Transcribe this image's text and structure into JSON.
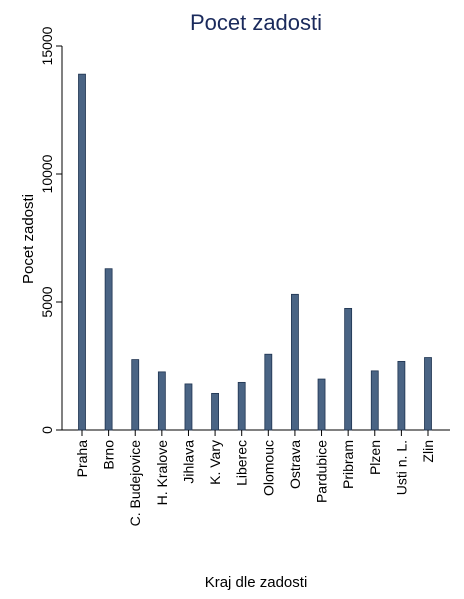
{
  "chart_data": {
    "type": "bar",
    "title": "Pocet zadosti",
    "xlabel": "Kraj dle zadosti",
    "ylabel": "Pocet zadosti",
    "categories": [
      "Praha",
      "Brno",
      "C. Budejovice",
      "H. Kralove",
      "Jihlava",
      "K. Vary",
      "Liberec",
      "Olomouc",
      "Ostrava",
      "Pardubice",
      "Pribram",
      "Plzen",
      "Usti n. L.",
      "Zlin"
    ],
    "values": [
      13900,
      6300,
      2750,
      2270,
      1800,
      1430,
      1860,
      2960,
      5300,
      1990,
      4750,
      2310,
      2680,
      2830
    ],
    "ylim": [
      0,
      15000
    ],
    "yticks": [
      0,
      5000,
      10000,
      15000
    ],
    "grid": false,
    "colors": {
      "bar": "#4a6484",
      "bar_edge": "#1e3350",
      "title": "#1a2a5c",
      "axis": "#000000"
    }
  }
}
